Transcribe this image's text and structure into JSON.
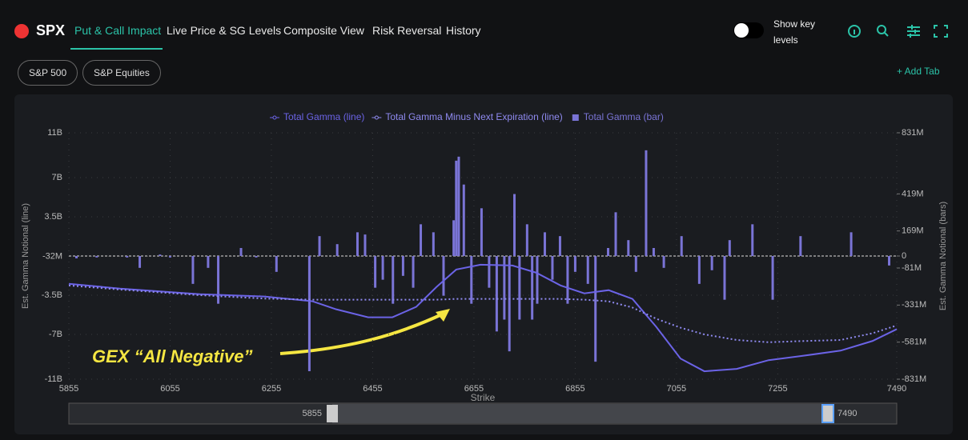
{
  "nav": {
    "symbol": "SPX",
    "tabs": [
      "Put & Call Impact",
      "Live Price & SG Levels",
      "Composite View",
      "Risk Reversal",
      "History"
    ],
    "toggle_label": "Show key levels",
    "add_tab": "+ Add Tab"
  },
  "filters": [
    "S&P 500",
    "S&P Equities"
  ],
  "annotation": "GEX “All Negative”",
  "slider": {
    "from": 5855,
    "to": 7490
  },
  "chart_data": {
    "type": "combo",
    "y_label": "Est. Gamma Notional (line)",
    "y2_label": "Est. Gamma Notional (bars)",
    "x_label": "Strike",
    "xlim": [
      5855,
      7490
    ],
    "xticks": [
      5855,
      6055,
      6255,
      6455,
      6655,
      6855,
      7055,
      7255,
      7490
    ],
    "ylim": [
      -11,
      11
    ],
    "yticks": [
      {
        "value": -11,
        "label": "-11B"
      },
      {
        "value": -7,
        "label": "-7B"
      },
      {
        "value": -3.5,
        "label": "-3.5B"
      },
      {
        "value": -0.032,
        "label": "-32M"
      },
      {
        "value": 3.5,
        "label": "3.5B"
      },
      {
        "value": 7,
        "label": "7B"
      },
      {
        "value": 11,
        "label": "11B"
      }
    ],
    "y2lim": [
      -831,
      831
    ],
    "y2ticks": [
      {
        "value": -831,
        "label": "-831M"
      },
      {
        "value": -581,
        "label": "-581M"
      },
      {
        "value": -331,
        "label": "-331M"
      },
      {
        "value": -81,
        "label": "-81M"
      },
      0,
      {
        "value": 169,
        "label": "169M"
      },
      {
        "value": 419,
        "label": "419M"
      },
      {
        "value": 831,
        "label": "831M"
      }
    ],
    "grid": true,
    "series": [
      {
        "name": "Total Gamma (line)",
        "type": "line",
        "style": "solid",
        "color": "#6b63e6",
        "x": [
          5855,
          5956,
          6114,
          6241,
          6336,
          6383,
          6446,
          6494,
          6541,
          6581,
          6620,
          6668,
          6731,
          6778,
          6826,
          6873,
          6921,
          6968,
          7015,
          7063,
          7110,
          7174,
          7237,
          7300,
          7379,
          7442,
          7490
        ],
        "values": [
          -2.48,
          -2.91,
          -3.41,
          -3.62,
          -4.04,
          -4.76,
          -5.47,
          -5.47,
          -4.54,
          -2.77,
          -1.21,
          -0.78,
          -0.85,
          -1.49,
          -2.63,
          -3.34,
          -3.05,
          -3.83,
          -6.32,
          -9.16,
          -10.29,
          -10.08,
          -9.3,
          -8.94,
          -8.45,
          -7.59,
          -6.53
        ]
      },
      {
        "name": "Total Gamma Minus Next Expiration (line)",
        "type": "line",
        "style": "dashed",
        "color": "#8f8af0",
        "x": [
          5855,
          5956,
          6114,
          6241,
          6336,
          6383,
          6446,
          6494,
          6541,
          6581,
          6620,
          6668,
          6731,
          6778,
          6826,
          6873,
          6921,
          6968,
          7015,
          7063,
          7110,
          7174,
          7237,
          7300,
          7379,
          7442,
          7490
        ],
        "values": [
          -2.63,
          -3.0,
          -3.5,
          -3.8,
          -3.9,
          -3.9,
          -3.9,
          -3.9,
          -3.9,
          -3.9,
          -3.83,
          -3.83,
          -3.83,
          -3.83,
          -3.83,
          -3.9,
          -4.05,
          -4.6,
          -5.6,
          -6.4,
          -7.0,
          -7.5,
          -7.7,
          -7.6,
          -7.5,
          -6.9,
          -6.2
        ]
      },
      {
        "name": "Total Gamma (bar)",
        "type": "bar",
        "axis": "y2",
        "color": "#7a74d6",
        "x": [
          5870,
          5910,
          5970,
          5995,
          6035,
          6055,
          6100,
          6130,
          6150,
          6195,
          6225,
          6265,
          6330,
          6350,
          6385,
          6425,
          6440,
          6460,
          6475,
          6495,
          6515,
          6535,
          6550,
          6575,
          6595,
          6615,
          6620,
          6625,
          6635,
          6650,
          6670,
          6685,
          6700,
          6715,
          6725,
          6735,
          6745,
          6760,
          6770,
          6780,
          6795,
          6810,
          6825,
          6840,
          6855,
          6880,
          6895,
          6920,
          6935,
          6960,
          6975,
          6995,
          7010,
          7030,
          7065,
          7100,
          7125,
          7150,
          7160,
          7205,
          7245,
          7300,
          7400,
          7475
        ],
        "values": [
          -16,
          -10,
          -10,
          -80,
          10,
          -10,
          -188,
          -80,
          -322,
          54,
          -10,
          -107,
          -777,
          134,
          80,
          160,
          145,
          -214,
          -160,
          -322,
          -134,
          -214,
          214,
          160,
          -268,
          241,
          643,
          670,
          482,
          -322,
          322,
          -214,
          -509,
          -429,
          -643,
          418,
          -429,
          214,
          -429,
          -322,
          160,
          -160,
          134,
          -322,
          -107,
          -188,
          -713,
          54,
          295,
          107,
          -107,
          713,
          54,
          -80,
          134,
          -188,
          -96,
          -295,
          107,
          214,
          -295,
          134,
          160,
          -64
        ]
      }
    ]
  }
}
